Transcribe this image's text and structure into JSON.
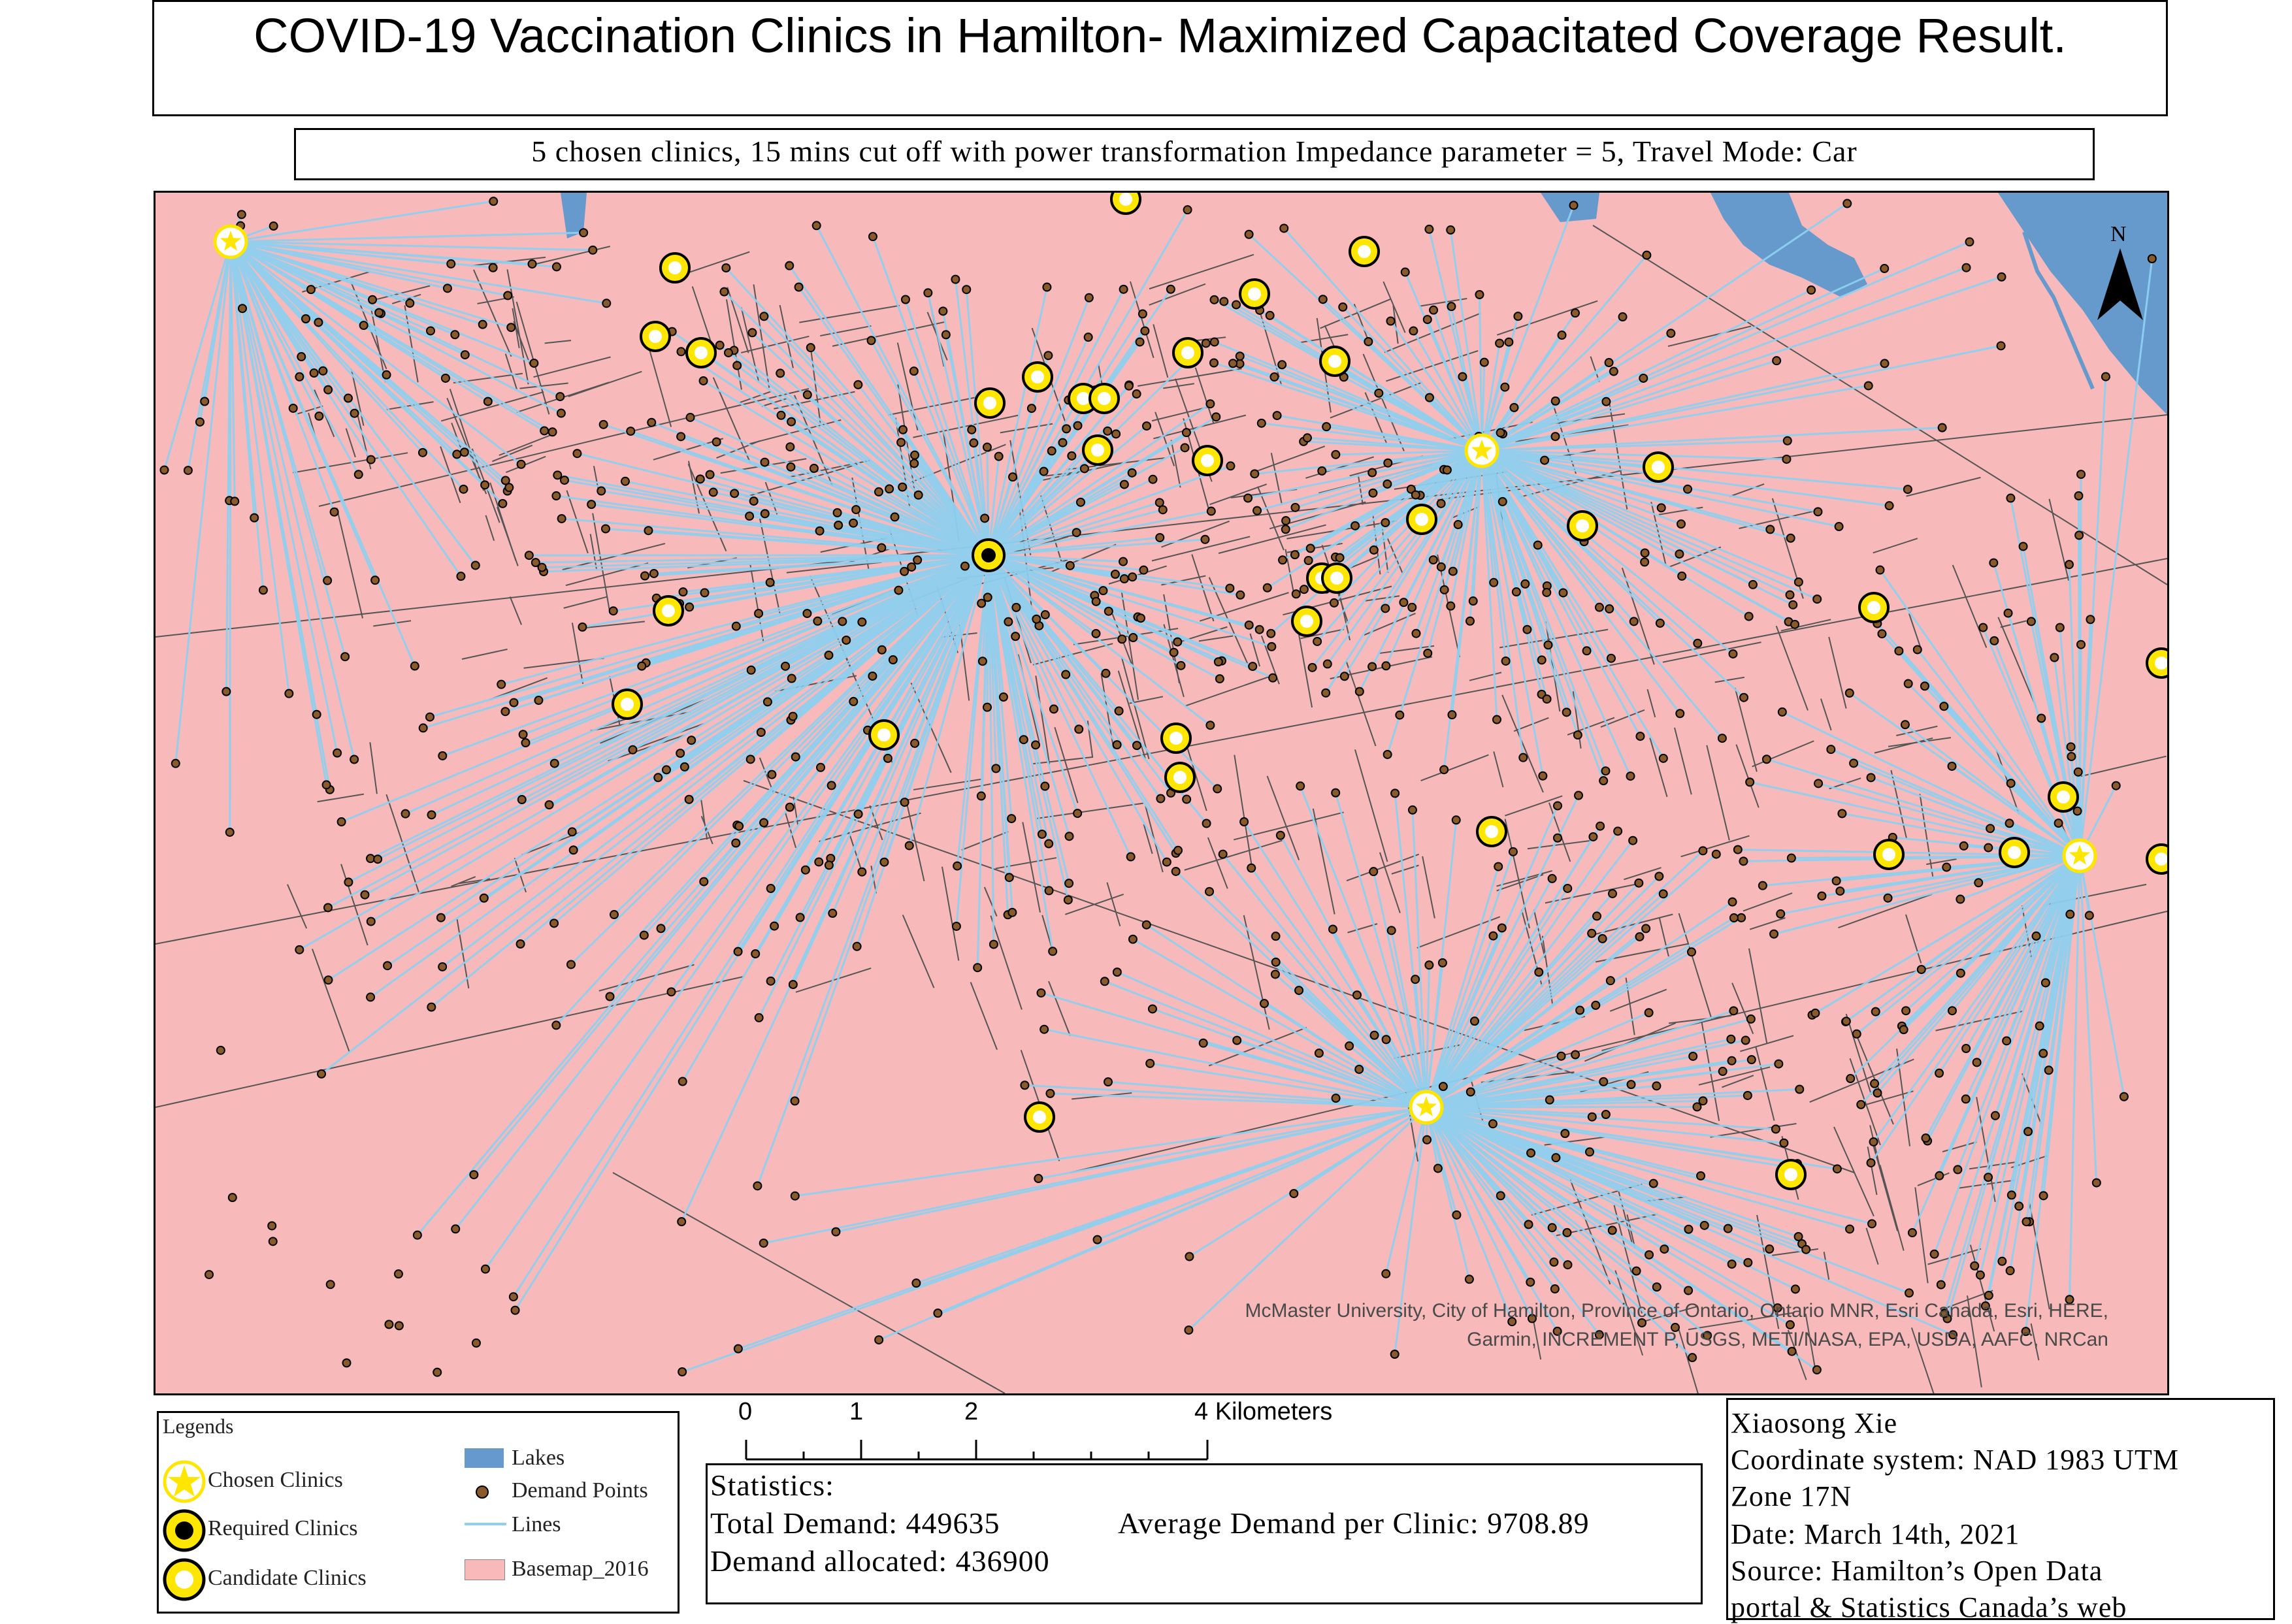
{
  "title": "COVID-19 Vaccination Clinics in Hamilton-  Maximized Capacitated Coverage Result.",
  "subtitle": "5 chosen clinics, 15 mins cut off with power transformation Impedance parameter = 5, Travel Mode: Car",
  "map": {
    "credits_line1": "McMaster University, City of Hamilton, Province of Ontario, Ontario MNR, Esri Canada, Esri, HERE,",
    "credits_line2": "Garmin, INCREMENT P, USGS, METI/NASA, EPA, USDA, AAFC, NRCan",
    "north_label": "N",
    "colors": {
      "basemap": "#f7b9b9",
      "lakes": "#6699cc",
      "lines": "#8ed0f0",
      "demand": "#8b5a2b",
      "clinic": "#ffe600",
      "boundary": "#555555"
    }
  },
  "legend": {
    "title": "Legends",
    "items": [
      {
        "label": "Chosen Clinics",
        "icon": "star-circle-icon"
      },
      {
        "label": "Required Clinics",
        "icon": "black-dot-circle-icon"
      },
      {
        "label": "Candidate Clinics",
        "icon": "ring-circle-icon"
      },
      {
        "label": "Lakes",
        "icon": "lake-swatch-icon"
      },
      {
        "label": "Demand Points",
        "icon": "brown-dot-icon"
      },
      {
        "label": "Lines",
        "icon": "line-icon"
      },
      {
        "label": "Basemap_2016",
        "icon": "basemap-swatch-icon"
      }
    ]
  },
  "scalebar": {
    "labels": [
      "0",
      "1",
      "2",
      "4 Kilometers"
    ]
  },
  "statistics": {
    "heading": "Statistics:",
    "total_demand": "Total Demand: 449635",
    "average": "Average Demand per Clinic: 9708.89",
    "allocated": "Demand allocated: 436900"
  },
  "author": {
    "lines": [
      "Xiaosong Xie",
      "Coordinate system: NAD 1983 UTM",
      "Zone 17N",
      "Date: March 14th, 2021",
      "Source: Hamilton’s Open Data",
      "portal & Statistics Canada’s web"
    ]
  }
}
